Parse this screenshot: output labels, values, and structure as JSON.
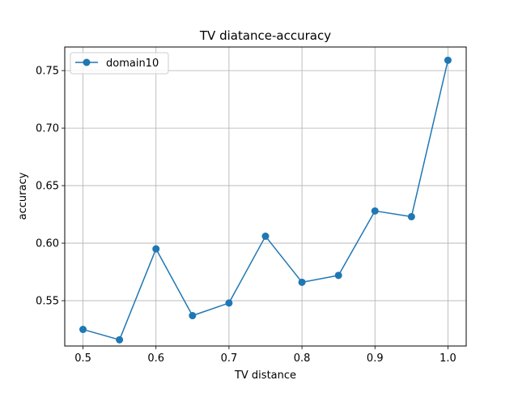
{
  "chart_data": {
    "type": "line",
    "title": "TV diatance-accuracy",
    "xlabel": "TV distance",
    "ylabel": "accuracy",
    "xlim": [
      0.475,
      1.025
    ],
    "ylim": [
      0.5106,
      0.7705
    ],
    "grid": true,
    "legend_position": "top-left",
    "xticks": [
      0.5,
      0.6,
      0.7,
      0.8,
      0.9,
      1.0
    ],
    "xtick_labels": [
      "0.5",
      "0.6",
      "0.7",
      "0.8",
      "0.9",
      "1.0"
    ],
    "yticks": [
      0.55,
      0.6,
      0.65,
      0.7,
      0.75
    ],
    "ytick_labels": [
      "0.55",
      "0.60",
      "0.65",
      "0.70",
      "0.75"
    ],
    "series": [
      {
        "name": "domain10",
        "color": "#1f77b4",
        "marker": "circle",
        "x": [
          0.5,
          0.55,
          0.6,
          0.65,
          0.7,
          0.75,
          0.8,
          0.85,
          0.9,
          0.95,
          1.0
        ],
        "y": [
          0.525,
          0.516,
          0.595,
          0.537,
          0.548,
          0.606,
          0.566,
          0.572,
          0.628,
          0.623,
          0.759
        ]
      }
    ]
  }
}
